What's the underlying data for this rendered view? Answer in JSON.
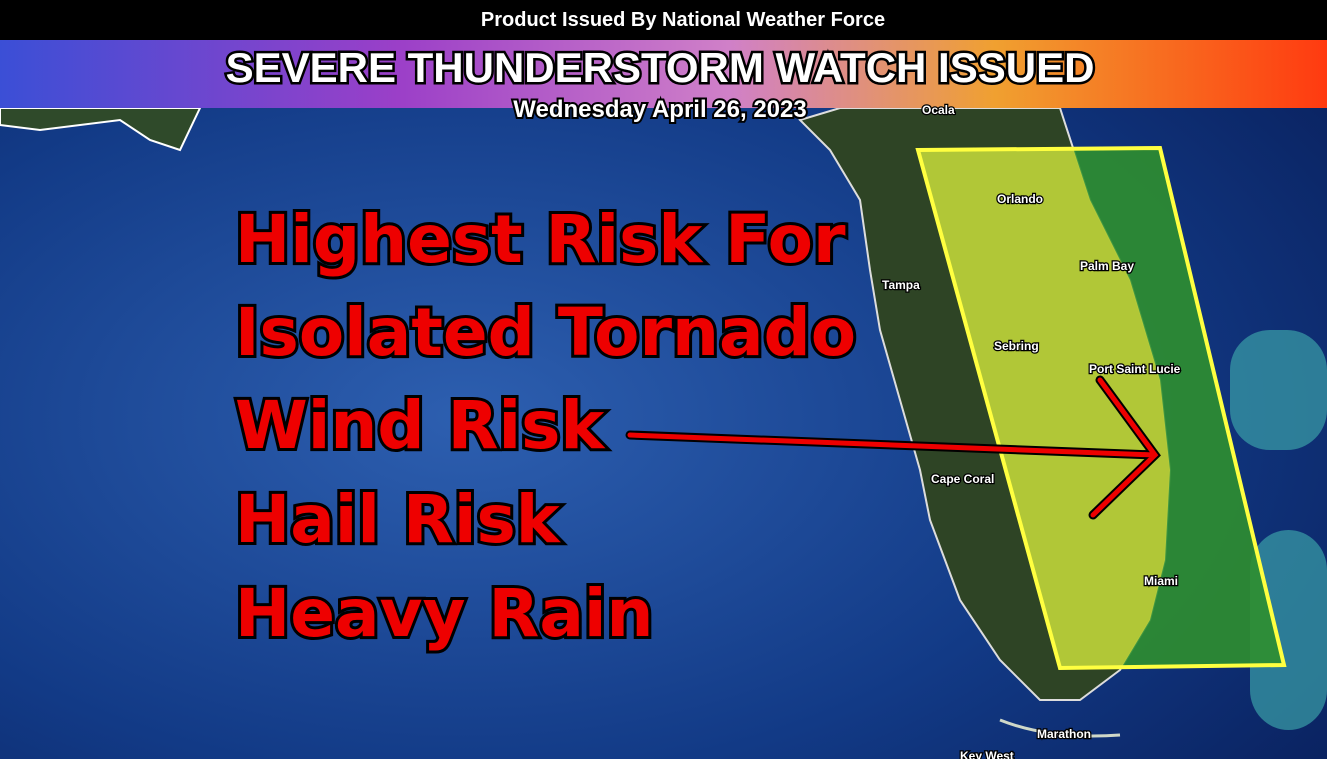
{
  "header": {
    "issuer": "Product Issued By National Weather Force",
    "title": "SEVERE THUNDERSTORM WATCH ISSUED",
    "date": "Wednesday April 26, 2023"
  },
  "risks": [
    "Highest Risk For",
    "Isolated Tornado",
    "Wind Risk",
    "Hail Risk",
    "Heavy Rain"
  ],
  "cities": [
    "Ocala",
    "Orlando",
    "Palm Bay",
    "Tampa",
    "Sebring",
    "Port Saint Lucie",
    "Cape Coral",
    "Miami",
    "Marathon",
    "Key West"
  ]
}
